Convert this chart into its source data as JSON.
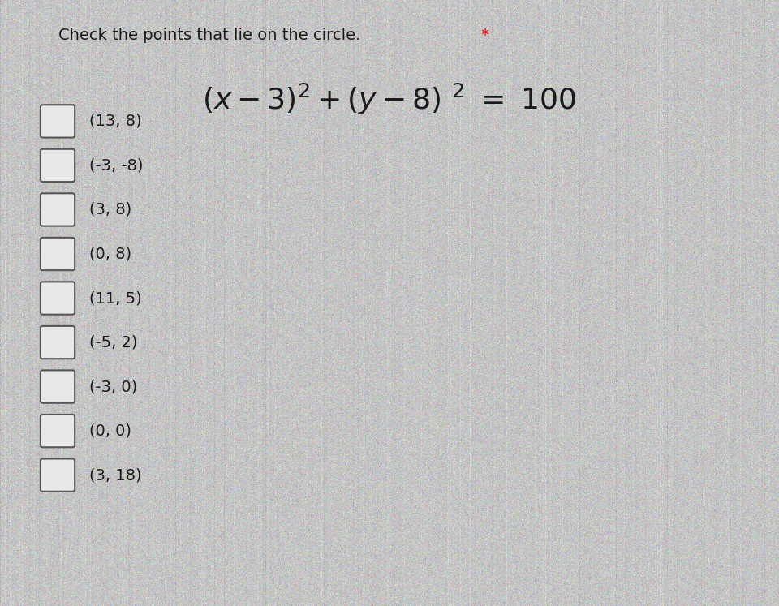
{
  "title": "Check the points that lie on the circle.",
  "title_asterisk": " *",
  "options": [
    "(13, 8)",
    "(-3, -8)",
    "(3, 8)",
    "(0, 8)",
    "(11, 5)",
    "(-5, 2)",
    "(-3, 0)",
    "(0, 0)",
    "(3, 18)"
  ],
  "bg_color_mean": "#c8c8c8",
  "text_color": "#1a1a1a",
  "title_fontsize": 14,
  "equation_fontsize": 26,
  "option_fontsize": 14,
  "checkbox_color": "#e8e8e8",
  "checkbox_edge_color": "#555555"
}
